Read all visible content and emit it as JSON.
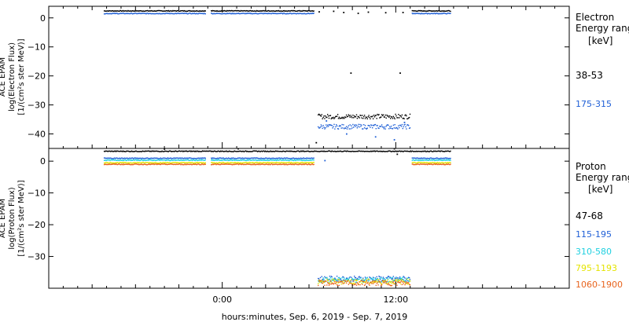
{
  "chart_data": [
    {
      "type": "scatter",
      "panel": "top",
      "ylabel": [
        "ACE EPAM",
        "log(Electron Flux)",
        "[1/(cm²s ster MeV)]"
      ],
      "ylim": [
        -45,
        4
      ],
      "yticks": [
        0,
        -10,
        -20,
        -30,
        -40
      ],
      "ytick_labels": [
        "0",
        "−10",
        "−20",
        "−30",
        "−40"
      ],
      "legend_title": [
        "Electron",
        "Energy range",
        "[keV]"
      ],
      "series": [
        {
          "name": "38-53",
          "color": "#000000",
          "segments": [
            {
              "x": [
                -8.2,
                -1.2
              ],
              "y": 2.4
            },
            {
              "x": [
                -0.8,
                6.3
              ],
              "y": 2.4
            },
            {
              "x": [
                13.1,
                15.8
              ],
              "y": 2.4
            },
            {
              "x": [
                6.6,
                13.0
              ],
              "y": -34.0
            }
          ],
          "points": [
            [
              6.7,
              2.1
            ],
            [
              7.7,
              2.3
            ],
            [
              8.4,
              1.9
            ],
            [
              9.4,
              1.6
            ],
            [
              10.1,
              2.0
            ],
            [
              11.3,
              1.8
            ],
            [
              12.5,
              1.9
            ],
            [
              8.9,
              -19
            ],
            [
              12.3,
              -19
            ],
            [
              6.5,
              -43
            ]
          ]
        },
        {
          "name": "175-315",
          "color": "#1f5fd6",
          "segments": [
            {
              "x": [
                -8.2,
                -1.2
              ],
              "y": 1.5
            },
            {
              "x": [
                -0.8,
                6.3
              ],
              "y": 1.5
            },
            {
              "x": [
                13.1,
                15.8
              ],
              "y": 1.5
            },
            {
              "x": [
                6.6,
                13.0
              ],
              "y": -37.5
            }
          ],
          "points": [
            [
              8.6,
              -40
            ],
            [
              10.6,
              -41
            ],
            [
              11.9,
              -42
            ],
            [
              7.2,
              -35.5
            ],
            [
              12.6,
              -36
            ]
          ]
        }
      ]
    },
    {
      "type": "scatter",
      "panel": "bottom",
      "ylabel": [
        "ACE EPAM",
        "log(Proton Flux)",
        "[1/(cm²s ster MeV)]"
      ],
      "ylim": [
        -40,
        4
      ],
      "yticks": [
        0,
        -10,
        -20,
        -30
      ],
      "ytick_labels": [
        "0",
        "−10",
        "−20",
        "−30"
      ],
      "legend_title": [
        "Proton",
        "Energy range",
        "[keV]"
      ],
      "series": [
        {
          "name": "47-68",
          "color": "#000000",
          "segments": [
            {
              "x": [
                -8.2,
                15.8
              ],
              "y": 3.1
            }
          ],
          "points": [
            [
              -4.0,
              3.8
            ],
            [
              1.1,
              3.9
            ],
            [
              11.9,
              3.9
            ],
            [
              12.1,
              2.2
            ]
          ]
        },
        {
          "name": "115-195",
          "color": "#1f5fd6",
          "segments": [
            {
              "x": [
                -8.2,
                -1.2
              ],
              "y": 0.9
            },
            {
              "x": [
                -0.8,
                6.3
              ],
              "y": 0.9
            },
            {
              "x": [
                13.1,
                15.8
              ],
              "y": 0.9
            },
            {
              "x": [
                6.6,
                13.0
              ],
              "y": -37.0
            }
          ],
          "points": [
            [
              7.1,
              0.2
            ]
          ]
        },
        {
          "name": "310-580",
          "color": "#20d0e0",
          "segments": [
            {
              "x": [
                -8.2,
                -1.2
              ],
              "y": 0.3
            },
            {
              "x": [
                -0.8,
                6.3
              ],
              "y": 0.3
            },
            {
              "x": [
                13.1,
                15.8
              ],
              "y": 0.3
            },
            {
              "x": [
                6.6,
                13.0
              ],
              "y": -37.4
            }
          ],
          "points": []
        },
        {
          "name": "795-1193",
          "color": "#e4e400",
          "segments": [
            {
              "x": [
                -8.2,
                -1.2
              ],
              "y": -0.5
            },
            {
              "x": [
                -0.8,
                6.3
              ],
              "y": -0.5
            },
            {
              "x": [
                13.1,
                15.8
              ],
              "y": -0.5
            },
            {
              "x": [
                6.6,
                13.0
              ],
              "y": -37.9
            }
          ],
          "points": []
        },
        {
          "name": "1060-1900",
          "color": "#e8641e",
          "segments": [
            {
              "x": [
                -8.2,
                -1.2
              ],
              "y": -1.0
            },
            {
              "x": [
                -0.8,
                6.3
              ],
              "y": -1.0
            },
            {
              "x": [
                13.1,
                15.8
              ],
              "y": -1.0
            },
            {
              "x": [
                6.6,
                13.0
              ],
              "y": -38.4
            }
          ],
          "points": []
        }
      ]
    }
  ],
  "x_axis": {
    "xlim": [
      -12,
      24
    ],
    "ticks": [
      0,
      12
    ],
    "tick_labels": [
      "0:00",
      "12:00"
    ],
    "xlabel": "hours:minutes, Sep.  6, 2019 - Sep.  7, 2019"
  }
}
